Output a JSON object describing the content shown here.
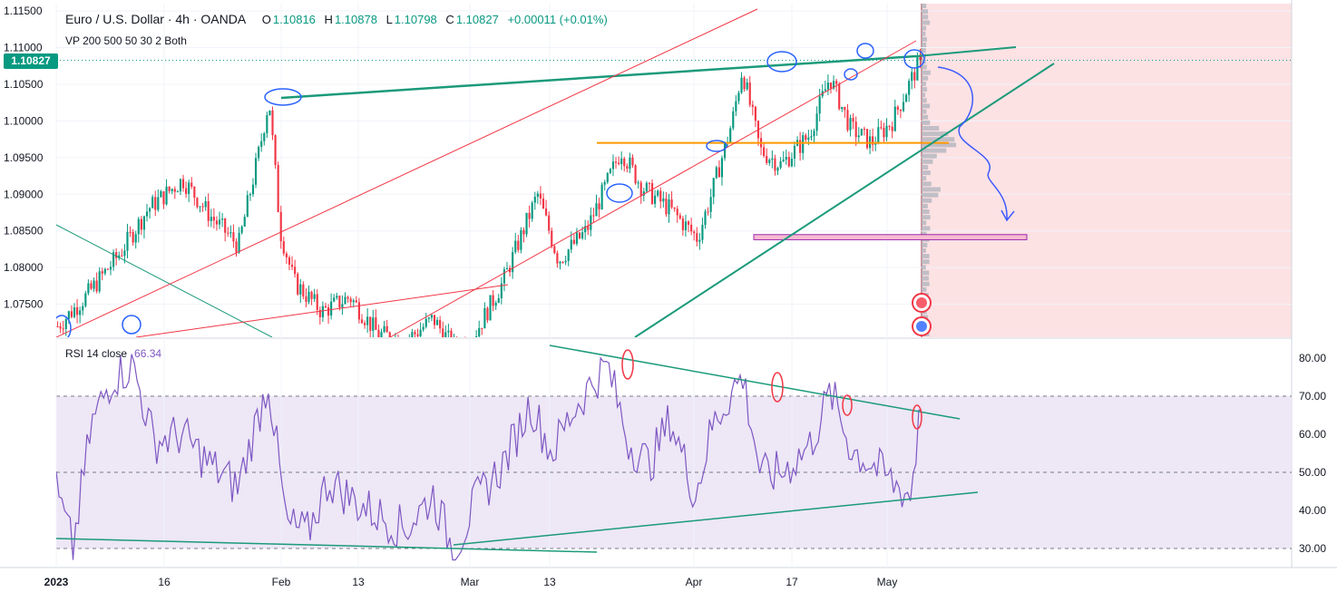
{
  "header": {
    "symbol": "Euro / U.S. Dollar · 4h · OANDA",
    "o_key": "O",
    "o_val": "1.10816",
    "h_key": "H",
    "h_val": "1.10878",
    "l_key": "L",
    "l_val": "1.10798",
    "c_key": "C",
    "c_val": "1.10827",
    "change": "+0.00011 (+0.01%)",
    "indicator": "VP 200 500 50 30 2 Both",
    "last_price": "1.10827"
  },
  "rsi": {
    "label": "RSI 14 close",
    "value": "66.34"
  },
  "colors": {
    "up": "#089981",
    "down": "#f23645",
    "rsi": "#7e57c2",
    "band": "#ede7f6",
    "trend_green": "#1b9a7a",
    "trend_red": "#f23645",
    "support": "#ff9800",
    "zone": "#f8bbd0",
    "future": "#fde2e4",
    "marker": "#2962ff"
  },
  "chart_data": [
    {
      "type": "candlestick",
      "symbol": "EUR/USD",
      "timeframe": "4h",
      "y_ticks": [
        1.075,
        1.08,
        1.085,
        1.09,
        1.095,
        1.1,
        1.105,
        1.11,
        1.115
      ],
      "ylim": [
        1.0705,
        1.116
      ],
      "x_ticks": [
        "2023",
        "16",
        "Feb",
        "13",
        "Mar",
        "13",
        "Apr",
        "17",
        "May"
      ],
      "price_path": [
        [
          0,
          1.072
        ],
        [
          20,
          1.076
        ],
        [
          45,
          1.082
        ],
        [
          65,
          1.088
        ],
        [
          90,
          1.092
        ],
        [
          110,
          1.087
        ],
        [
          130,
          1.083
        ],
        [
          145,
          1.096
        ],
        [
          152,
          1.103
        ],
        [
          160,
          1.085
        ],
        [
          170,
          1.078
        ],
        [
          190,
          1.074
        ],
        [
          210,
          1.076
        ],
        [
          230,
          1.071
        ],
        [
          250,
          1.07
        ],
        [
          270,
          1.073
        ],
        [
          285,
          1.069
        ],
        [
          300,
          1.071
        ],
        [
          320,
          1.078
        ],
        [
          345,
          1.09
        ],
        [
          360,
          1.081
        ],
        [
          380,
          1.085
        ],
        [
          405,
          1.096
        ],
        [
          420,
          1.091
        ],
        [
          440,
          1.088
        ],
        [
          460,
          1.084
        ],
        [
          470,
          1.09
        ],
        [
          485,
          1.1
        ],
        [
          492,
          1.107
        ],
        [
          505,
          1.096
        ],
        [
          520,
          1.094
        ],
        [
          540,
          1.098
        ],
        [
          555,
          1.106
        ],
        [
          570,
          1.099
        ],
        [
          585,
          1.097
        ],
        [
          600,
          1.1
        ],
        [
          620,
          1.1083
        ]
      ],
      "support_level": 1.097,
      "zone": [
        1.0838,
        1.0845
      ]
    },
    {
      "type": "line",
      "name": "RSI 14 close",
      "y_ticks": [
        30.0,
        40.0,
        50.0,
        60.0,
        70.0,
        80.0
      ],
      "ylim": [
        25,
        85
      ],
      "bands": [
        30,
        50,
        70
      ],
      "last": 66.34,
      "path": [
        [
          0,
          45
        ],
        [
          12,
          30
        ],
        [
          25,
          62
        ],
        [
          40,
          75
        ],
        [
          55,
          78
        ],
        [
          70,
          58
        ],
        [
          90,
          60
        ],
        [
          110,
          52
        ],
        [
          130,
          46
        ],
        [
          145,
          65
        ],
        [
          152,
          74
        ],
        [
          165,
          36
        ],
        [
          180,
          34
        ],
        [
          195,
          48
        ],
        [
          215,
          42
        ],
        [
          235,
          38
        ],
        [
          250,
          35
        ],
        [
          270,
          44
        ],
        [
          285,
          29
        ],
        [
          300,
          42
        ],
        [
          320,
          52
        ],
        [
          340,
          68
        ],
        [
          355,
          55
        ],
        [
          370,
          66
        ],
        [
          385,
          74
        ],
        [
          395,
          78
        ],
        [
          410,
          58
        ],
        [
          425,
          52
        ],
        [
          440,
          64
        ],
        [
          458,
          44
        ],
        [
          470,
          62
        ],
        [
          485,
          72
        ],
        [
          492,
          75
        ],
        [
          505,
          49
        ],
        [
          520,
          50
        ],
        [
          540,
          57
        ],
        [
          555,
          71
        ],
        [
          570,
          56
        ],
        [
          585,
          52
        ],
        [
          600,
          47
        ],
        [
          612,
          44
        ],
        [
          620,
          66
        ]
      ]
    }
  ]
}
